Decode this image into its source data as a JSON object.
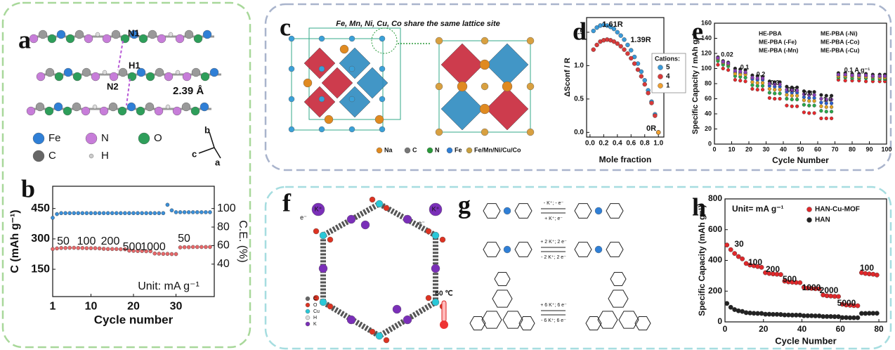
{
  "panels": {
    "a": {
      "letter": "a",
      "labels": [
        "N1",
        "H1",
        "N2",
        "2.39 Å"
      ],
      "legend": [
        "Fe",
        "N",
        "O",
        "C",
        "H"
      ],
      "axes": [
        "b",
        "c",
        "a"
      ]
    },
    "c": {
      "letter": "c",
      "title": "Fe, Mn, Ni, Cu, Co share the same lattice site",
      "legend": [
        "Na",
        "C",
        "N",
        "Fe",
        "Fe/Mn/Ni/Cu/Co"
      ]
    },
    "f": {
      "letter": "f",
      "ions": [
        "K⁺",
        "e⁻",
        "K⁺",
        "e⁻"
      ],
      "legend": [
        "C",
        "O",
        "Cu",
        "H",
        "K"
      ],
      "temperature": "60 ℃"
    },
    "g": {
      "letter": "g",
      "reactions": [
        [
          "- K⁺; - e⁻",
          "+ K⁺; e⁻"
        ],
        [
          "+ 2 K⁺; 2 e⁻",
          "- 2 K⁺; 2 e⁻"
        ],
        [
          "+ 6 K⁺; 6 e⁻",
          "- 6 K⁺; 6 e⁻"
        ]
      ]
    }
  },
  "chart_data": [
    {
      "type": "scatter",
      "panel_label": "b",
      "xlabel": "Cycle number",
      "ylabel": "C (mAh g⁻¹)",
      "y2label": "C.E. (%)",
      "x": [
        1,
        2,
        3,
        4,
        5,
        6,
        7,
        8,
        9,
        10,
        11,
        12,
        13,
        14,
        15,
        16,
        17,
        18,
        19,
        20,
        21,
        22,
        23,
        24,
        25,
        26,
        27,
        28,
        29,
        30,
        31,
        32,
        33,
        34,
        35,
        36,
        37,
        38
      ],
      "xlim": [
        1,
        39
      ],
      "xticks": [
        1,
        10,
        20,
        30
      ],
      "ylim": [
        15,
        560
      ],
      "yticks": [
        150,
        300,
        450
      ],
      "y2lim": [
        5,
        124
      ],
      "y2ticks": [
        40,
        60,
        80,
        100
      ],
      "series": [
        {
          "name": "C",
          "color": "#e8686a",
          "values": [
            250,
            253,
            255,
            255,
            256,
            256,
            255,
            255,
            254,
            254,
            254,
            253,
            251,
            250,
            250,
            250,
            249,
            249,
            242,
            241,
            240,
            240,
            239,
            239,
            228,
            227,
            226,
            226,
            225,
            225,
            258,
            259,
            259,
            260,
            260,
            260,
            260,
            260
          ]
        },
        {
          "name": "C.E.",
          "color": "#3a8fd9",
          "axis": "y2",
          "values": [
            90,
            94,
            95,
            95,
            95,
            95,
            95,
            95,
            95,
            95,
            95,
            95,
            95,
            95,
            95,
            95,
            95,
            95,
            95,
            95,
            95,
            95,
            95,
            95,
            95,
            95,
            95,
            104,
            98,
            96,
            96,
            96,
            96,
            96,
            96,
            96,
            96,
            96
          ]
        }
      ],
      "annotations": [
        "50",
        "100",
        "200",
        "500",
        "1000",
        "50",
        "Unit: mA g⁻¹"
      ]
    },
    {
      "type": "scatter",
      "panel_label": "d",
      "xlabel": "Mole fraction",
      "ylabel": "ΔSconf / R",
      "x": [
        0.05,
        0.1,
        0.15,
        0.2,
        0.25,
        0.3,
        0.35,
        0.4,
        0.45,
        0.5,
        0.55,
        0.6,
        0.65,
        0.7,
        0.75,
        0.8,
        0.85,
        0.9,
        0.95,
        1.0
      ],
      "xlim": [
        -0.05,
        1.08
      ],
      "xticks": [
        {
          "value": 0,
          "label": "0.0"
        },
        0.2,
        0.4,
        0.6,
        0.8,
        {
          "value": 1,
          "label": "1.0"
        }
      ],
      "ylim": [
        -0.07,
        1.72
      ],
      "yticks": [
        {
          "value": 0,
          "label": "0.0"
        },
        0.5,
        {
          "value": 1,
          "label": "1.0"
        },
        1.5
      ],
      "legend_title": "Cations:",
      "series": [
        {
          "name": "5",
          "color": "#3a9ad9",
          "values": [
            1.52,
            1.57,
            1.6,
            1.61,
            1.6,
            1.58,
            1.55,
            1.5,
            1.45,
            1.39,
            1.31,
            1.23,
            1.13,
            1.03,
            0.91,
            0.78,
            0.63,
            0.46,
            0.27,
            0
          ]
        },
        {
          "name": "4",
          "color": "#d93a3a",
          "values": [
            1.24,
            1.31,
            1.36,
            1.38,
            1.39,
            1.38,
            1.36,
            1.33,
            1.29,
            1.24,
            1.18,
            1.11,
            1.03,
            0.94,
            0.84,
            0.72,
            0.59,
            0.44,
            0.25,
            0
          ]
        },
        {
          "name": "1",
          "color": "#f0a030",
          "values": [
            null,
            null,
            null,
            null,
            null,
            null,
            null,
            null,
            null,
            null,
            null,
            null,
            null,
            null,
            null,
            null,
            null,
            null,
            null,
            0
          ]
        }
      ],
      "annotations": [
        "1.61R",
        "1.39R",
        "0R"
      ]
    },
    {
      "type": "scatter",
      "panel_label": "e",
      "xlabel": "Cycle Number",
      "ylabel": "Specific Capacity / mAh g⁻¹",
      "x": [
        2,
        5,
        8,
        12,
        15,
        18,
        22,
        25,
        28,
        32,
        35,
        38,
        42,
        45,
        48,
        52,
        55,
        58,
        62,
        65,
        68,
        72,
        76,
        80,
        84,
        88,
        92,
        96,
        99
      ],
      "xlim": [
        0,
        100
      ],
      "xticks": [
        0,
        10,
        20,
        30,
        40,
        50,
        60,
        70,
        80,
        90,
        100
      ],
      "ylim": [
        0,
        160
      ],
      "yticks": [
        0,
        20,
        40,
        60,
        80,
        100,
        120,
        140,
        160
      ],
      "series": [
        {
          "name": "HE-PBA",
          "color": "#222222",
          "values": [
            115,
            110,
            108,
            100,
            99,
            98,
            91,
            90,
            89,
            83,
            82,
            82,
            76,
            75,
            75,
            70,
            69,
            69,
            65,
            64,
            64,
            94,
            94,
            93,
            93,
            93,
            92,
            92,
            92
          ]
        },
        {
          "name": "ME-PBA (-Fe)",
          "color": "#e8282b",
          "values": [
            105,
            100,
            98,
            85,
            84,
            83,
            73,
            72,
            72,
            61,
            60,
            60,
            51,
            50,
            50,
            42,
            41,
            41,
            34,
            34,
            34,
            85,
            84,
            84,
            84,
            83,
            83,
            83,
            83
          ]
        },
        {
          "name": "ME-PBA (-Mn)",
          "color": "#2a5fcf",
          "values": [
            112,
            107,
            105,
            95,
            94,
            94,
            86,
            85,
            85,
            77,
            76,
            76,
            69,
            68,
            68,
            62,
            61,
            61,
            55,
            54,
            54,
            91,
            91,
            90,
            90,
            90,
            89,
            89,
            89
          ]
        },
        {
          "name": "ME-PBA (-Ni)",
          "color": "#2aa84a",
          "values": [
            110,
            105,
            103,
            90,
            89,
            88,
            78,
            77,
            77,
            68,
            67,
            67,
            60,
            59,
            59,
            52,
            51,
            51,
            44,
            43,
            43,
            88,
            88,
            87,
            87,
            87,
            86,
            86,
            86
          ]
        },
        {
          "name": "ME-PBA (-Co)",
          "color": "#e2a022",
          "values": [
            113,
            108,
            106,
            93,
            92,
            92,
            82,
            81,
            81,
            73,
            72,
            72,
            65,
            64,
            64,
            58,
            57,
            57,
            50,
            49,
            49,
            90,
            90,
            90,
            89,
            89,
            89,
            88,
            88
          ]
        },
        {
          "name": "ME-PBA (-Cu)",
          "color": "#8a3fb5",
          "values": [
            114,
            109,
            107,
            97,
            96,
            95,
            88,
            87,
            87,
            80,
            79,
            79,
            72,
            71,
            71,
            66,
            65,
            65,
            60,
            59,
            59,
            92,
            92,
            91,
            91,
            91,
            90,
            90,
            90
          ]
        }
      ],
      "annotations": [
        "0.02",
        "0.1",
        "0.2",
        "0.3",
        "0.5",
        "0.8",
        "1.0",
        "0.1 A g⁻¹"
      ]
    },
    {
      "type": "scatter",
      "panel_label": "h",
      "xlabel": "Cycle Number",
      "ylabel": "Specific Capacity (mAh g⁻¹)",
      "x": [
        1,
        3,
        5,
        7,
        9,
        11,
        13,
        15,
        17,
        19,
        21,
        23,
        25,
        27,
        29,
        31,
        33,
        35,
        37,
        39,
        41,
        43,
        45,
        47,
        49,
        51,
        53,
        55,
        57,
        59,
        61,
        63,
        65,
        67,
        69,
        71,
        73,
        75,
        77,
        79
      ],
      "xlim": [
        0,
        84
      ],
      "xticks": [
        0,
        20,
        40,
        60,
        80
      ],
      "ylim": [
        0,
        800
      ],
      "yticks": [
        0,
        200,
        400,
        600,
        800
      ],
      "series": [
        {
          "name": "HAN-Cu-MOF",
          "color": "#e0282b",
          "values": [
            500,
            470,
            445,
            425,
            410,
            380,
            370,
            365,
            360,
            355,
            320,
            315,
            312,
            310,
            308,
            265,
            260,
            258,
            256,
            255,
            225,
            220,
            218,
            216,
            215,
            175,
            170,
            168,
            166,
            165,
            115,
            110,
            108,
            106,
            105,
            320,
            315,
            312,
            310,
            305
          ]
        },
        {
          "name": "HAN",
          "color": "#222222",
          "values": [
            120,
            95,
            80,
            72,
            68,
            60,
            58,
            56,
            55,
            55,
            50,
            50,
            49,
            49,
            48,
            45,
            45,
            44,
            44,
            44,
            40,
            40,
            40,
            39,
            39,
            35,
            35,
            35,
            34,
            34,
            28,
            28,
            27,
            27,
            27,
            55,
            55,
            56,
            56,
            56
          ]
        }
      ],
      "annotations": [
        "Unit= mA g⁻¹",
        "30",
        "100",
        "200",
        "500",
        "1000",
        "2000",
        "5000",
        "100"
      ]
    }
  ]
}
